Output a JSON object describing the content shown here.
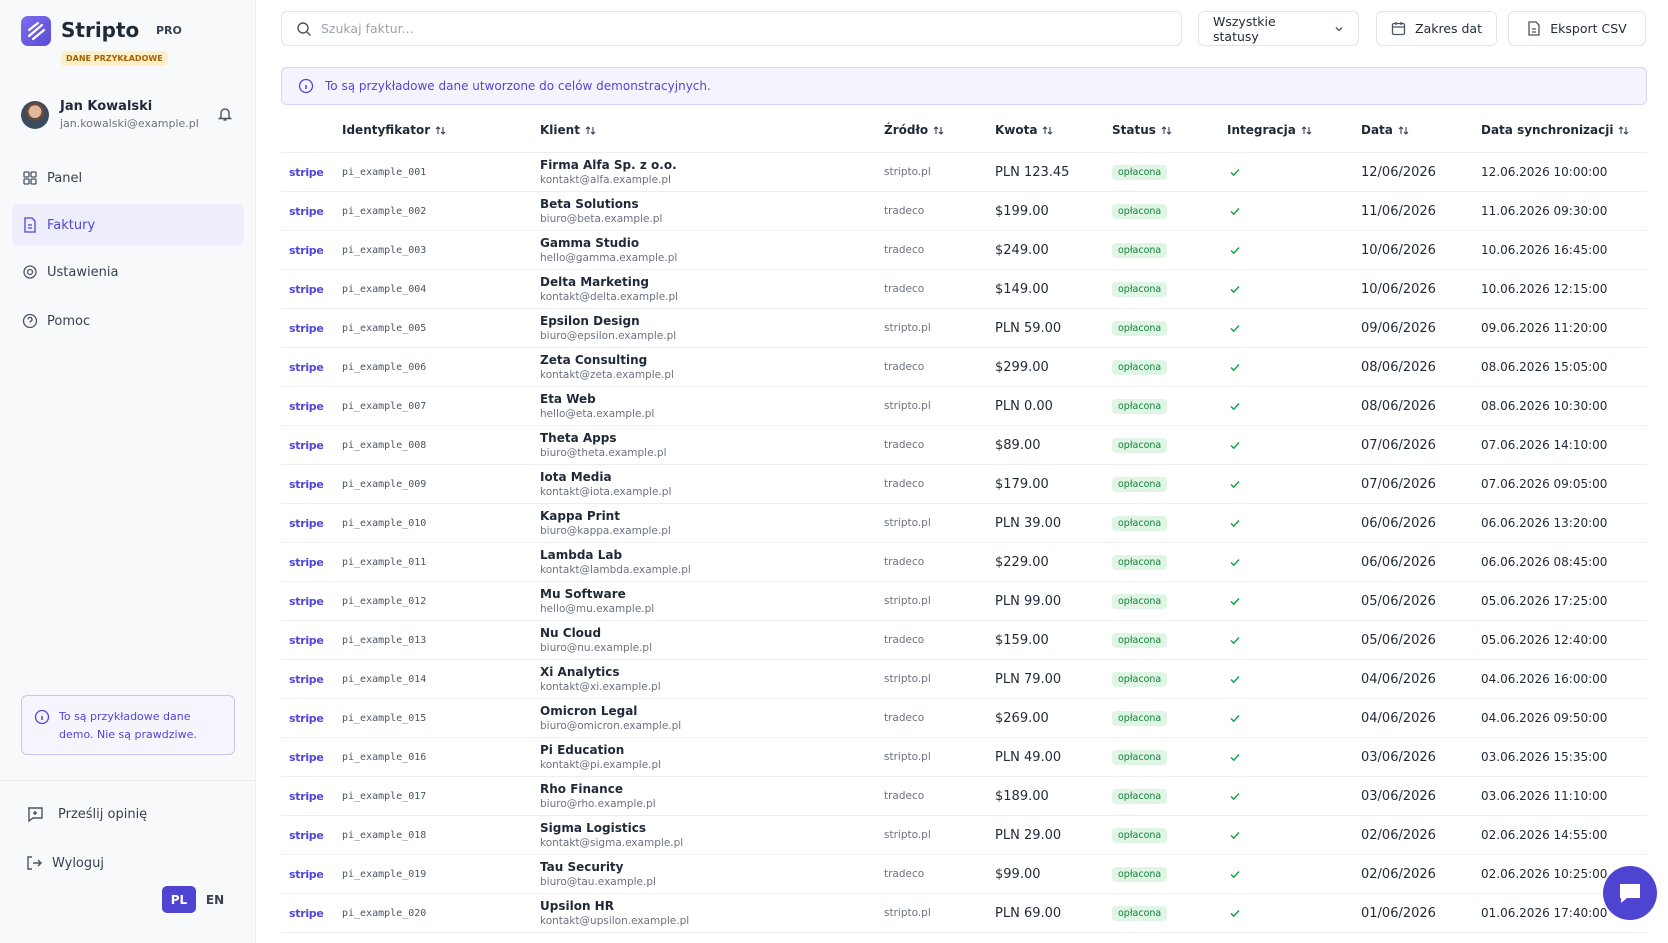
{
  "sidebar": {
    "logo": "Stripto",
    "plan": "PRO",
    "badge": "DANE PRZYKŁADOWE",
    "user": {
      "name": "Jan Kowalski",
      "email": "jan.kowalski@example.pl"
    },
    "nav": [
      "Panel",
      "Faktury",
      "Ustawienia",
      "Pomoc"
    ],
    "notice": "To są przykładowe dane demo. Nie są prawdziwe.",
    "feedback": "Prześlij opinię",
    "logout": "Wyloguj",
    "languages": [
      "PL",
      "EN"
    ]
  },
  "toolbar": {
    "search_placeholder": "Szukaj faktur...",
    "status_filter": "Wszystkie statusy",
    "date_range": "Zakres dat",
    "export": "Eksport CSV"
  },
  "banner": "To są przykładowe dane utworzone do celów demonstracyjnych.",
  "table": {
    "columns": [
      "Identyfikator",
      "Klient",
      "Źródło",
      "Kwota",
      "Status",
      "Integracja",
      "Data",
      "Data synchronizacji"
    ],
    "rows": [
      {
        "provider": "stripe",
        "id": "pi_example_001",
        "client": "Firma Alfa Sp. z o.o.",
        "email": "kontakt@alfa.example.pl",
        "source": "stripto.pl",
        "amount": "PLN 123.45",
        "status": "opłacona",
        "date": "12/06/2026",
        "synced": "12.06.2026 10:00:00"
      },
      {
        "provider": "stripe",
        "id": "pi_example_002",
        "client": "Beta Solutions",
        "email": "biuro@beta.example.pl",
        "source": "tradeco",
        "amount": "$199.00",
        "status": "opłacona",
        "date": "11/06/2026",
        "synced": "11.06.2026 09:30:00"
      },
      {
        "provider": "stripe",
        "id": "pi_example_003",
        "client": "Gamma Studio",
        "email": "hello@gamma.example.pl",
        "source": "tradeco",
        "amount": "$249.00",
        "status": "opłacona",
        "date": "10/06/2026",
        "synced": "10.06.2026 16:45:00"
      },
      {
        "provider": "stripe",
        "id": "pi_example_004",
        "client": "Delta Marketing",
        "email": "kontakt@delta.example.pl",
        "source": "tradeco",
        "amount": "$149.00",
        "status": "opłacona",
        "date": "10/06/2026",
        "synced": "10.06.2026 12:15:00"
      },
      {
        "provider": "stripe",
        "id": "pi_example_005",
        "client": "Epsilon Design",
        "email": "biuro@epsilon.example.pl",
        "source": "stripto.pl",
        "amount": "PLN 59.00",
        "status": "opłacona",
        "date": "09/06/2026",
        "synced": "09.06.2026 11:20:00"
      },
      {
        "provider": "stripe",
        "id": "pi_example_006",
        "client": "Zeta Consulting",
        "email": "kontakt@zeta.example.pl",
        "source": "tradeco",
        "amount": "$299.00",
        "status": "opłacona",
        "date": "08/06/2026",
        "synced": "08.06.2026 15:05:00"
      },
      {
        "provider": "stripe",
        "id": "pi_example_007",
        "client": "Eta Web",
        "email": "hello@eta.example.pl",
        "source": "stripto.pl",
        "amount": "PLN 0.00",
        "status": "opłacona",
        "date": "08/06/2026",
        "synced": "08.06.2026 10:30:00"
      },
      {
        "provider": "stripe",
        "id": "pi_example_008",
        "client": "Theta Apps",
        "email": "biuro@theta.example.pl",
        "source": "tradeco",
        "amount": "$89.00",
        "status": "opłacona",
        "date": "07/06/2026",
        "synced": "07.06.2026 14:10:00"
      },
      {
        "provider": "stripe",
        "id": "pi_example_009",
        "client": "Iota Media",
        "email": "kontakt@iota.example.pl",
        "source": "tradeco",
        "amount": "$179.00",
        "status": "opłacona",
        "date": "07/06/2026",
        "synced": "07.06.2026 09:05:00"
      },
      {
        "provider": "stripe",
        "id": "pi_example_010",
        "client": "Kappa Print",
        "email": "biuro@kappa.example.pl",
        "source": "stripto.pl",
        "amount": "PLN 39.00",
        "status": "opłacona",
        "date": "06/06/2026",
        "synced": "06.06.2026 13:20:00"
      },
      {
        "provider": "stripe",
        "id": "pi_example_011",
        "client": "Lambda Lab",
        "email": "kontakt@lambda.example.pl",
        "source": "tradeco",
        "amount": "$229.00",
        "status": "opłacona",
        "date": "06/06/2026",
        "synced": "06.06.2026 08:45:00"
      },
      {
        "provider": "stripe",
        "id": "pi_example_012",
        "client": "Mu Software",
        "email": "hello@mu.example.pl",
        "source": "stripto.pl",
        "amount": "PLN 99.00",
        "status": "opłacona",
        "date": "05/06/2026",
        "synced": "05.06.2026 17:25:00"
      },
      {
        "provider": "stripe",
        "id": "pi_example_013",
        "client": "Nu Cloud",
        "email": "biuro@nu.example.pl",
        "source": "tradeco",
        "amount": "$159.00",
        "status": "opłacona",
        "date": "05/06/2026",
        "synced": "05.06.2026 12:40:00"
      },
      {
        "provider": "stripe",
        "id": "pi_example_014",
        "client": "Xi Analytics",
        "email": "kontakt@xi.example.pl",
        "source": "stripto.pl",
        "amount": "PLN 79.00",
        "status": "opłacona",
        "date": "04/06/2026",
        "synced": "04.06.2026 16:00:00"
      },
      {
        "provider": "stripe",
        "id": "pi_example_015",
        "client": "Omicron Legal",
        "email": "biuro@omicron.example.pl",
        "source": "tradeco",
        "amount": "$269.00",
        "status": "opłacona",
        "date": "04/06/2026",
        "synced": "04.06.2026 09:50:00"
      },
      {
        "provider": "stripe",
        "id": "pi_example_016",
        "client": "Pi Education",
        "email": "kontakt@pi.example.pl",
        "source": "stripto.pl",
        "amount": "PLN 49.00",
        "status": "opłacona",
        "date": "03/06/2026",
        "synced": "03.06.2026 15:35:00"
      },
      {
        "provider": "stripe",
        "id": "pi_example_017",
        "client": "Rho Finance",
        "email": "biuro@rho.example.pl",
        "source": "tradeco",
        "amount": "$189.00",
        "status": "opłacona",
        "date": "03/06/2026",
        "synced": "03.06.2026 11:10:00"
      },
      {
        "provider": "stripe",
        "id": "pi_example_018",
        "client": "Sigma Logistics",
        "email": "kontakt@sigma.example.pl",
        "source": "stripto.pl",
        "amount": "PLN 29.00",
        "status": "opłacona",
        "date": "02/06/2026",
        "synced": "02.06.2026 14:55:00"
      },
      {
        "provider": "stripe",
        "id": "pi_example_019",
        "client": "Tau Security",
        "email": "biuro@tau.example.pl",
        "source": "tradeco",
        "amount": "$99.00",
        "status": "opłacona",
        "date": "02/06/2026",
        "synced": "02.06.2026 10:25:00"
      },
      {
        "provider": "stripe",
        "id": "pi_example_020",
        "client": "Upsilon HR",
        "email": "kontakt@upsilon.example.pl",
        "source": "stripto.pl",
        "amount": "PLN 69.00",
        "status": "opłacona",
        "date": "01/06/2026",
        "synced": "01.06.2026 17:40:00"
      }
    ]
  }
}
